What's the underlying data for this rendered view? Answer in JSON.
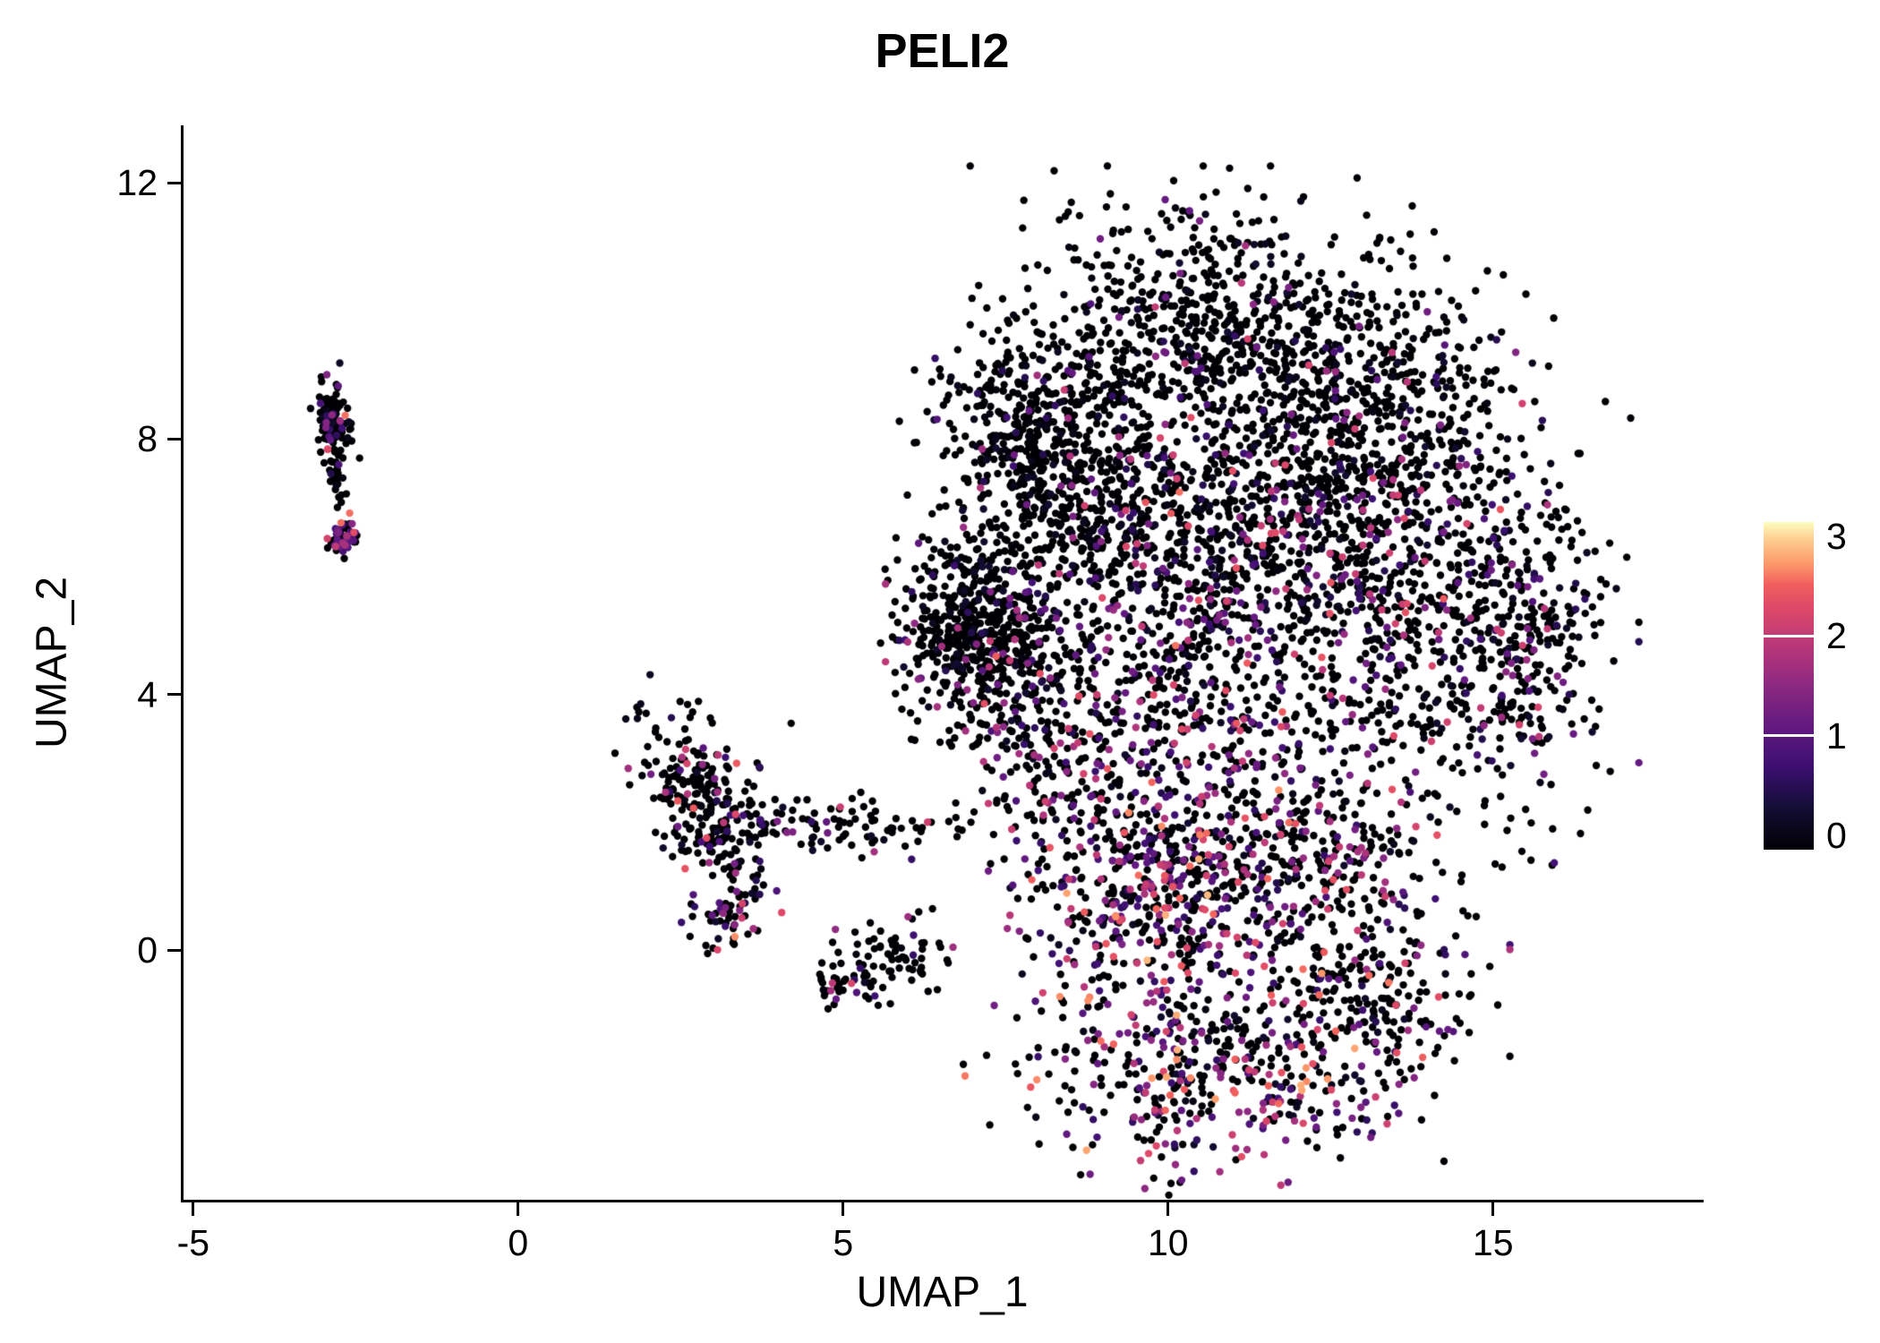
{
  "title": "PELI2",
  "chart_data": {
    "type": "scatter",
    "title": "PELI2",
    "xlabel": "UMAP_1",
    "ylabel": "UMAP_2",
    "xlim": [
      -5.15,
      18.2
    ],
    "ylim": [
      -3.9,
      12.9
    ],
    "x_ticks": [
      -5,
      0,
      5,
      10,
      15
    ],
    "y_ticks": [
      0,
      4,
      8,
      12
    ],
    "grid": false,
    "legend_position": "right",
    "legend_breaks": [
      0,
      1,
      2,
      3
    ],
    "color_max": 3,
    "point_radius_px": 4.2,
    "seed": 42,
    "colormap": [
      [
        0.0,
        "#000004"
      ],
      [
        0.13,
        "#140e36"
      ],
      [
        0.25,
        "#3b0f70"
      ],
      [
        0.38,
        "#641a80"
      ],
      [
        0.5,
        "#8c2981"
      ],
      [
        0.62,
        "#b73779"
      ],
      [
        0.74,
        "#de4968"
      ],
      [
        0.81,
        "#f1605d"
      ],
      [
        0.88,
        "#fe9f6d"
      ],
      [
        0.95,
        "#fecf92"
      ],
      [
        1.0,
        "#fcfdbf"
      ]
    ],
    "clusters": [
      {
        "name": "left-islet-top",
        "cx": -2.85,
        "cy": 8.35,
        "sdx": 0.12,
        "sdy": 0.3,
        "rot": 8,
        "n": 110,
        "p": 0.22,
        "emin": 0.6,
        "emax": 2.6
      },
      {
        "name": "left-islet-tip",
        "cx": -2.7,
        "cy": 6.45,
        "sdx": 0.11,
        "sdy": 0.17,
        "rot": 0,
        "n": 55,
        "p": 0.55,
        "emin": 0.8,
        "emax": 2.6
      },
      {
        "name": "left-islet-trail",
        "cx": -2.78,
        "cy": 7.4,
        "sdx": 0.07,
        "sdy": 0.4,
        "rot": 5,
        "n": 30,
        "p": 0.08,
        "emin": 0.5,
        "emax": 1.5
      },
      {
        "name": "mid-cluster-body",
        "cx": 2.85,
        "cy": 2.3,
        "sdx": 0.8,
        "sdy": 0.38,
        "rot": -62,
        "n": 270,
        "p": 0.17,
        "emin": 0.5,
        "emax": 2.4
      },
      {
        "name": "mid-cluster-arm",
        "cx": 4.8,
        "cy": 2.0,
        "sdx": 0.85,
        "sdy": 0.22,
        "rot": -6,
        "n": 90,
        "p": 0.12,
        "emin": 0.5,
        "emax": 2.2
      },
      {
        "name": "mid-cluster-lower",
        "cx": 3.35,
        "cy": 0.5,
        "sdx": 0.35,
        "sdy": 0.3,
        "rot": 0,
        "n": 45,
        "p": 0.3,
        "emin": 0.6,
        "emax": 2.6
      },
      {
        "name": "small-cluster",
        "cx": 5.55,
        "cy": -0.2,
        "sdx": 0.5,
        "sdy": 0.28,
        "rot": 10,
        "n": 85,
        "p": 0.14,
        "emin": 0.5,
        "emax": 2.2
      },
      {
        "name": "small-cluster-tail",
        "cx": 4.85,
        "cy": -0.6,
        "sdx": 0.15,
        "sdy": 0.15,
        "rot": 0,
        "n": 18,
        "p": 0.35,
        "emin": 0.8,
        "emax": 2.2
      },
      {
        "name": "main-top",
        "cx": 10.6,
        "cy": 9.7,
        "sdx": 1.35,
        "sdy": 0.95,
        "rot": 0,
        "n": 650,
        "p": 0.05,
        "emin": 0.5,
        "emax": 2.0
      },
      {
        "name": "main-upper-left",
        "cx": 8.7,
        "cy": 7.1,
        "sdx": 1.05,
        "sdy": 1.15,
        "rot": 0,
        "n": 550,
        "p": 0.1,
        "emin": 0.5,
        "emax": 2.2
      },
      {
        "name": "main-upper-left-rim",
        "cx": 7.9,
        "cy": 8.0,
        "sdx": 0.55,
        "sdy": 0.9,
        "rot": 35,
        "n": 260,
        "p": 0.05,
        "emin": 0.5,
        "emax": 1.8
      },
      {
        "name": "main-left-wedge",
        "cx": 7.15,
        "cy": 5.0,
        "sdx": 0.62,
        "sdy": 0.75,
        "rot": 20,
        "n": 520,
        "p": 0.08,
        "emin": 0.5,
        "emax": 2.0
      },
      {
        "name": "main-mid-left",
        "cx": 8.4,
        "cy": 3.3,
        "sdx": 0.95,
        "sdy": 1.15,
        "rot": 0,
        "n": 330,
        "p": 0.26,
        "emin": 0.5,
        "emax": 2.4
      },
      {
        "name": "main-center",
        "cx": 10.7,
        "cy": 5.1,
        "sdx": 1.2,
        "sdy": 1.5,
        "rot": 0,
        "n": 580,
        "p": 0.3,
        "emin": 0.5,
        "emax": 2.5
      },
      {
        "name": "main-right",
        "cx": 13.6,
        "cy": 5.4,
        "sdx": 1.35,
        "sdy": 1.8,
        "rot": 0,
        "n": 780,
        "p": 0.15,
        "emin": 0.5,
        "emax": 2.4
      },
      {
        "name": "main-right-edge",
        "cx": 15.5,
        "cy": 4.8,
        "sdx": 0.6,
        "sdy": 1.4,
        "rot": 0,
        "n": 240,
        "p": 0.18,
        "emin": 0.5,
        "emax": 2.2
      },
      {
        "name": "main-top-right",
        "cx": 13.1,
        "cy": 8.4,
        "sdx": 1.05,
        "sdy": 1.05,
        "rot": 0,
        "n": 430,
        "p": 0.07,
        "emin": 0.5,
        "emax": 2.0
      },
      {
        "name": "main-upper-mid",
        "cx": 11.3,
        "cy": 7.0,
        "sdx": 1.3,
        "sdy": 0.9,
        "rot": 0,
        "n": 330,
        "p": 0.14,
        "emin": 0.5,
        "emax": 2.2
      },
      {
        "name": "main-bottom-hot",
        "cx": 9.8,
        "cy": 0.9,
        "sdx": 0.95,
        "sdy": 1.05,
        "rot": 0,
        "n": 470,
        "p": 0.48,
        "emin": 0.6,
        "emax": 2.8
      },
      {
        "name": "main-bottom-mid",
        "cx": 11.9,
        "cy": 1.3,
        "sdx": 1.2,
        "sdy": 0.95,
        "rot": 0,
        "n": 380,
        "p": 0.32,
        "emin": 0.5,
        "emax": 2.5
      },
      {
        "name": "main-bottom-lobe",
        "cx": 10.9,
        "cy": -1.9,
        "sdx": 1.5,
        "sdy": 0.8,
        "rot": 0,
        "n": 430,
        "p": 0.42,
        "emin": 0.6,
        "emax": 2.7
      },
      {
        "name": "main-bottom-right",
        "cx": 13.1,
        "cy": -0.8,
        "sdx": 0.8,
        "sdy": 0.75,
        "rot": 0,
        "n": 190,
        "p": 0.2,
        "emin": 0.5,
        "emax": 2.3
      }
    ],
    "extra_points": [
      [
        15.35,
        9.35,
        1.4
      ],
      [
        15.45,
        8.55,
        2.1
      ],
      [
        4.2,
        3.55,
        0
      ],
      [
        6.05,
        3.3,
        0
      ],
      [
        16.3,
        6.1,
        0
      ],
      [
        6.6,
        -0.15,
        0
      ],
      [
        8.05,
        -0.95,
        0
      ],
      [
        13.9,
        -2.65,
        0
      ]
    ]
  }
}
